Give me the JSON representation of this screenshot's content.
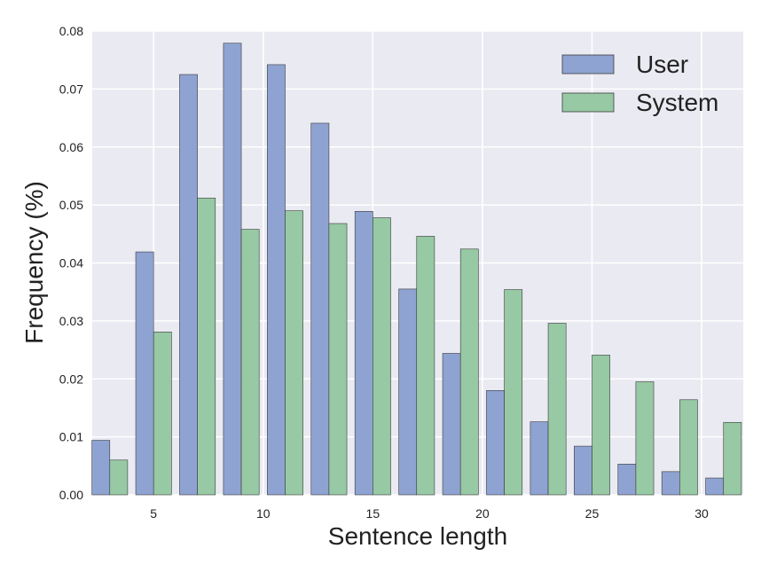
{
  "chart_data": {
    "type": "bar",
    "xlabel": "Sentence length",
    "ylabel": "Frequency (%)",
    "x": [
      3,
      5,
      7,
      9,
      11,
      13,
      15,
      17,
      19,
      21,
      23,
      25,
      27,
      29,
      31
    ],
    "xlim": [
      2.2,
      31.9
    ],
    "ylim": [
      0,
      0.08
    ],
    "xticks": [
      5,
      10,
      15,
      20,
      25,
      30
    ],
    "xtick_labels": [
      "5",
      "10",
      "15",
      "20",
      "25",
      "30"
    ],
    "yticks": [
      0,
      0.01,
      0.02,
      0.03,
      0.04,
      0.05,
      0.06,
      0.07,
      0.08
    ],
    "ytick_labels": [
      "0.00",
      "0.01",
      "0.02",
      "0.03",
      "0.04",
      "0.05",
      "0.06",
      "0.07",
      "0.08"
    ],
    "grid": true,
    "legend_position": "top-right",
    "series": [
      {
        "name": "User",
        "color": "#8fa3d2",
        "values": [
          0.0094,
          0.0419,
          0.0725,
          0.0779,
          0.0742,
          0.0641,
          0.0489,
          0.0355,
          0.0244,
          0.018,
          0.0126,
          0.0084,
          0.0053,
          0.004,
          0.0029
        ]
      },
      {
        "name": "System",
        "color": "#97c9a4",
        "values": [
          0.006,
          0.0281,
          0.0512,
          0.0458,
          0.049,
          0.0468,
          0.0478,
          0.0446,
          0.0424,
          0.0354,
          0.0296,
          0.0241,
          0.0195,
          0.0164,
          0.0125
        ]
      }
    ]
  }
}
